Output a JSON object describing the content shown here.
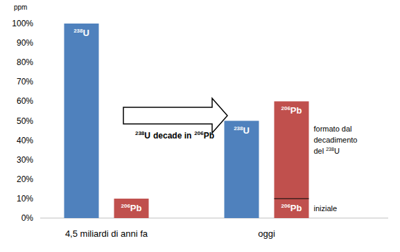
{
  "chart_data": {
    "type": "bar",
    "stacked": true,
    "y_label": "ppm",
    "ylim": [
      0,
      100
    ],
    "yticks": [
      {
        "value": 0,
        "label": "0%"
      },
      {
        "value": 10,
        "label": "10%"
      },
      {
        "value": 20,
        "label": "20%"
      },
      {
        "value": 30,
        "label": "30%"
      },
      {
        "value": 40,
        "label": "40%"
      },
      {
        "value": 50,
        "label": "50%"
      },
      {
        "value": 60,
        "label": "60%"
      },
      {
        "value": 70,
        "label": "70%"
      },
      {
        "value": 80,
        "label": "80%"
      },
      {
        "value": 90,
        "label": "90%"
      },
      {
        "value": 100,
        "label": "100%"
      }
    ],
    "categories": [
      "4,5 miliardi di anni fa",
      "oggi"
    ],
    "bars": [
      {
        "category": 0,
        "segments": [
          {
            "value": 100,
            "color": "#4f81bd",
            "label": {
              "mass": "238",
              "symbol": "U"
            }
          }
        ]
      },
      {
        "category": 0,
        "segments": [
          {
            "value": 10,
            "color": "#c0504d",
            "label": {
              "mass": "206",
              "symbol": "Pb"
            }
          }
        ]
      },
      {
        "category": 1,
        "segments": [
          {
            "value": 50,
            "color": "#4f81bd",
            "label": {
              "mass": "238",
              "symbol": "U"
            }
          }
        ]
      },
      {
        "category": 1,
        "segments": [
          {
            "value": 10,
            "color": "#c0504d",
            "label": {
              "mass": "206",
              "symbol": "Pb"
            },
            "annotation": {
              "lines": [
                "iniziale"
              ]
            }
          },
          {
            "value": 50,
            "color": "#c0504d",
            "label": {
              "mass": "206",
              "symbol": "Pb"
            },
            "annotation": {
              "lines": [
                "formato dal",
                "decadimento",
                "del"
              ],
              "mass": "238",
              "symbol": "U"
            }
          }
        ]
      }
    ],
    "arrow_label": {
      "from": {
        "mass": "238",
        "symbol": "U"
      },
      "text": "decade in",
      "to": {
        "mass": "206",
        "symbol": "Pb"
      }
    }
  }
}
